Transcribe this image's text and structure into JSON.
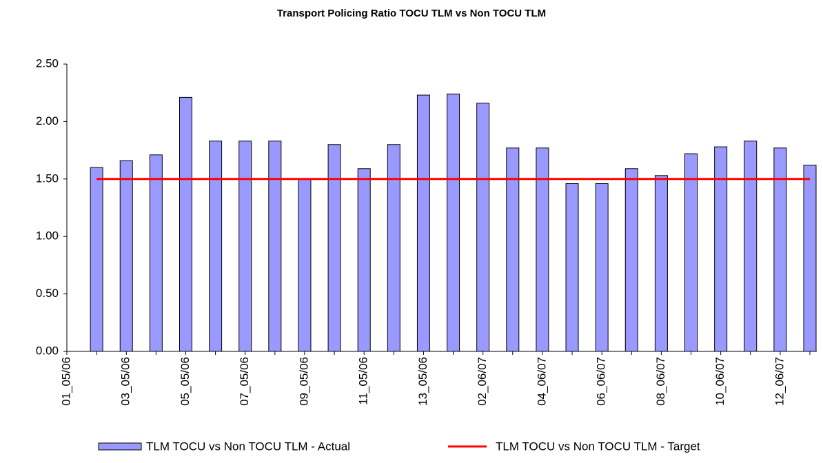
{
  "chart_data": {
    "type": "bar",
    "title": "Transport Policing  Ratio TOCU TLM vs Non TOCU TLM",
    "categories": [
      "01_05/06",
      null,
      "03_05/06",
      null,
      "05_05/06",
      null,
      "07_05/06",
      null,
      "09_05/06",
      null,
      "11_05/06",
      null,
      "13_05/06",
      null,
      "02_06/07",
      null,
      "04_06/07",
      null,
      "06_06/07",
      null,
      "08_06/07",
      null,
      "10_06/07",
      null,
      "12_06/07",
      null
    ],
    "series": [
      {
        "name": "TLM TOCU vs Non TOCU TLM - Actual",
        "type": "bar",
        "color": "#9999ff",
        "values": [
          null,
          1.6,
          1.66,
          1.71,
          2.21,
          1.83,
          1.83,
          1.83,
          1.5,
          1.8,
          1.59,
          1.8,
          2.23,
          2.24,
          2.16,
          1.77,
          1.77,
          1.46,
          1.46,
          1.59,
          1.53,
          1.72,
          1.78,
          1.83,
          1.77,
          1.62
        ]
      },
      {
        "name": "TLM TOCU vs Non TOCU TLM - Target",
        "type": "line",
        "color": "#ff0000",
        "values": [
          null,
          1.5,
          1.5,
          1.5,
          1.5,
          1.5,
          1.5,
          1.5,
          1.5,
          1.5,
          1.5,
          1.5,
          1.5,
          1.5,
          1.5,
          1.5,
          1.5,
          1.5,
          1.5,
          1.5,
          1.5,
          1.5,
          1.5,
          1.5,
          1.5,
          1.5
        ]
      }
    ],
    "ylim": [
      0,
      2.5
    ],
    "yticks": [
      {
        "value": 0,
        "label": "0.00"
      },
      {
        "value": 0.5,
        "label": "0.50"
      },
      {
        "value": 1,
        "label": "1.00"
      },
      {
        "value": 1.5,
        "label": "1.50"
      },
      {
        "value": 2,
        "label": "2.00"
      },
      {
        "value": 2.5,
        "label": "2.50"
      }
    ],
    "grid": false,
    "legend": "bottom"
  }
}
